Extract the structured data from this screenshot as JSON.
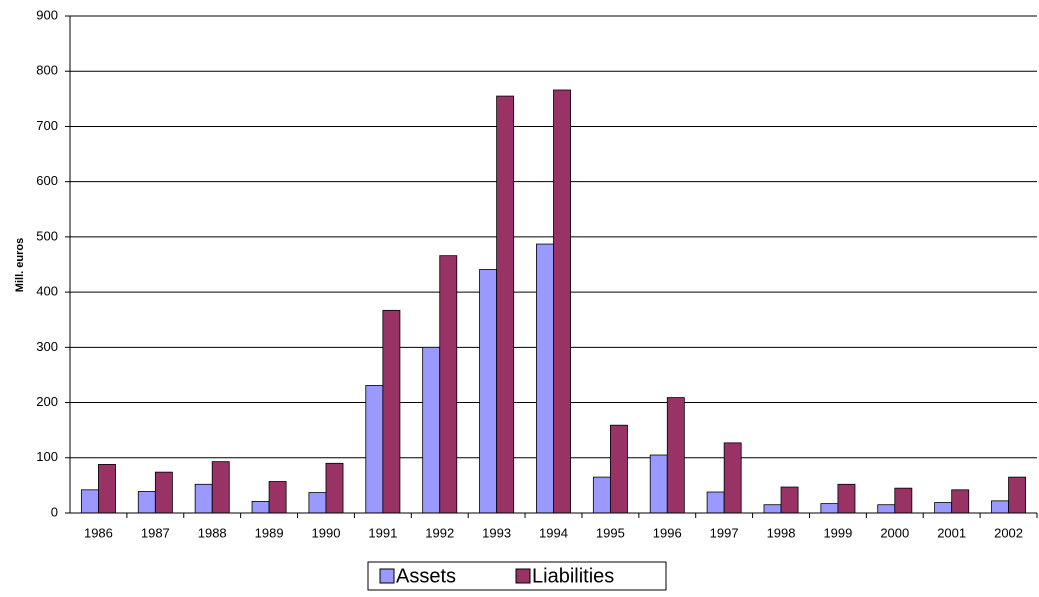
{
  "chart_data": {
    "type": "bar",
    "y_label": "Mill. euros",
    "categories": [
      "1986",
      "1987",
      "1988",
      "1989",
      "1990",
      "1991",
      "1992",
      "1993",
      "1994",
      "1995",
      "1996",
      "1997",
      "1998",
      "1999",
      "2000",
      "2001",
      "2002"
    ],
    "series": [
      {
        "name": "Assets",
        "color": "#9999ff",
        "values": [
          42,
          39,
          52,
          21,
          37,
          231,
          300,
          441,
          487,
          65,
          105,
          38,
          15,
          17,
          15,
          19,
          22
        ]
      },
      {
        "name": "Liabilities",
        "color": "#993366",
        "values": [
          88,
          74,
          93,
          57,
          90,
          367,
          466,
          755,
          766,
          159,
          209,
          127,
          47,
          52,
          45,
          42,
          65
        ]
      }
    ],
    "ylim": [
      0,
      900
    ],
    "yticks": [
      0,
      100,
      200,
      300,
      400,
      500,
      600,
      700,
      800,
      900
    ],
    "grid": true
  }
}
